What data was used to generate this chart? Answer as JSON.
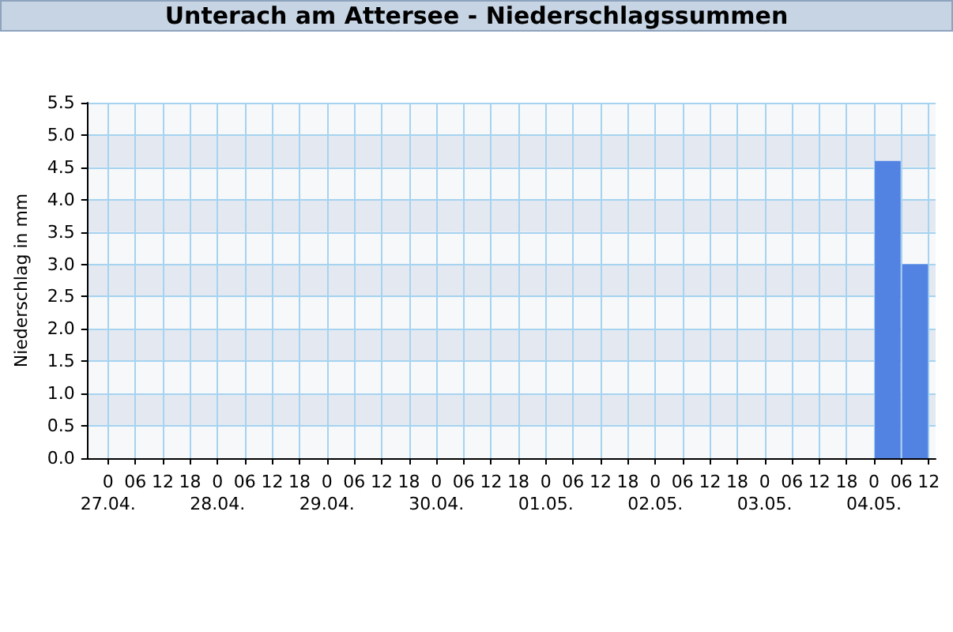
{
  "chart_data": {
    "type": "histogram",
    "title": "Unterach am Attersee - Niederschlagssummen",
    "ylabel": "Niederschlag in mm",
    "bins": [
      "--05-04T00:00",
      "--05-04T06:00",
      "--05-04T12:00"
    ],
    "values": [
      4.6,
      3.0
    ],
    "color": "#5282e2",
    "xlim": [
      "--04-26T19:30",
      "--05-04T13:30"
    ],
    "xticks": [
      {
        "value": "--04-27T00:00",
        "label": "0\n27.04."
      },
      {
        "value": "--04-27T06:00",
        "label": "06"
      },
      {
        "value": "--04-27T12:00",
        "label": "12"
      },
      {
        "value": "--04-27T18:00",
        "label": "18"
      },
      {
        "value": "--04-28T00:00",
        "label": "0\n28.04."
      },
      {
        "value": "--04-28T06:00",
        "label": "06"
      },
      {
        "value": "--04-28T12:00",
        "label": "12"
      },
      {
        "value": "--04-28T18:00",
        "label": "18"
      },
      {
        "value": "--04-29T00:00",
        "label": "0\n29.04."
      },
      {
        "value": "--04-29T06:00",
        "label": "06"
      },
      {
        "value": "--04-29T12:00",
        "label": "12"
      },
      {
        "value": "--04-29T18:00",
        "label": "18"
      },
      {
        "value": "--04-30T00:00",
        "label": "0\n30.04."
      },
      {
        "value": "--04-30T06:00",
        "label": "06"
      },
      {
        "value": "--04-30T12:00",
        "label": "12"
      },
      {
        "value": "--04-30T18:00",
        "label": "18"
      },
      {
        "value": "--05-01T00:00",
        "label": "0\n01.05."
      },
      {
        "value": "--05-01T06:00",
        "label": "06"
      },
      {
        "value": "--05-01T12:00",
        "label": "12"
      },
      {
        "value": "--05-01T18:00",
        "label": "18"
      },
      {
        "value": "--05-02T00:00",
        "label": "0\n02.05."
      },
      {
        "value": "--05-02T06:00",
        "label": "06"
      },
      {
        "value": "--05-02T12:00",
        "label": "12"
      },
      {
        "value": "--05-02T18:00",
        "label": "18"
      },
      {
        "value": "--05-03T00:00",
        "label": "0\n03.05."
      },
      {
        "value": "--05-03T06:00",
        "label": "06"
      },
      {
        "value": "--05-03T12:00",
        "label": "12"
      },
      {
        "value": "--05-03T18:00",
        "label": "18"
      },
      {
        "value": "--05-04T00:00",
        "label": "0\n04.05."
      },
      {
        "value": "--05-04T06:00",
        "label": "06"
      },
      {
        "value": "--05-04T12:00",
        "label": "12"
      }
    ],
    "ylim": [
      0,
      5.5
    ],
    "yticks": [
      {
        "value": 0,
        "label": "0.0"
      },
      {
        "value": 0.5,
        "label": "0.5"
      },
      {
        "value": 1,
        "label": "1.0"
      },
      {
        "value": 1.5,
        "label": "1.5"
      },
      {
        "value": 2,
        "label": "2.0"
      },
      {
        "value": 2.5,
        "label": "2.5"
      },
      {
        "value": 3,
        "label": "3.0"
      },
      {
        "value": 3.5,
        "label": "3.5"
      },
      {
        "value": 4,
        "label": "4.0"
      },
      {
        "value": 4.5,
        "label": "4.5"
      },
      {
        "value": 5,
        "label": "5.0"
      },
      {
        "value": 5.5,
        "label": "5.5"
      }
    ],
    "grid": true
  }
}
